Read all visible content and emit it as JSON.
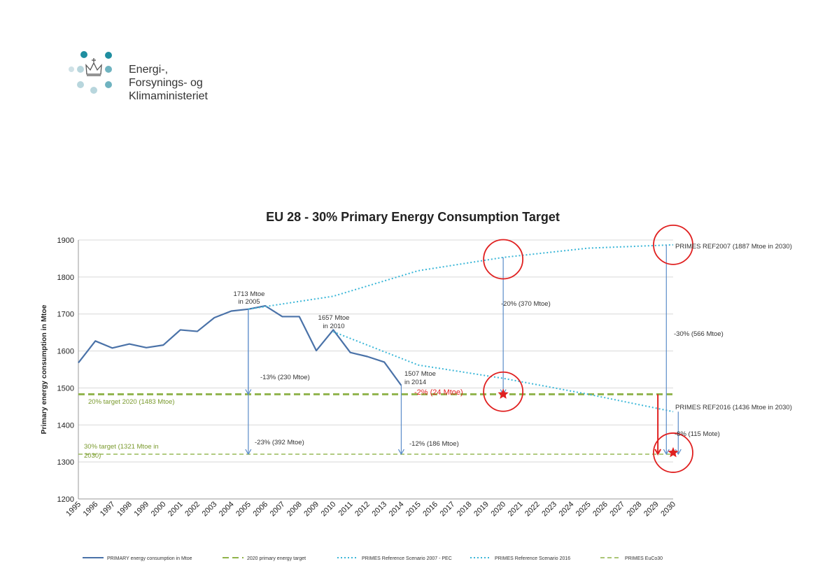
{
  "logo": {
    "line1": "Energi-,",
    "line2": "Forsynings- og",
    "line3": "Klimaministeriet",
    "icon": "crown-dots-icon",
    "dot_colors": [
      "#1f8ea0",
      "#6fb3c0",
      "#b8d6dd"
    ]
  },
  "colors": {
    "primary": "#4a72a8",
    "target_green": "#8fb34a",
    "primes": "#3cb7d8",
    "arrow": "#5b8cc9",
    "red": "#e02020",
    "grid": "#d8d8d8"
  },
  "chart_data": {
    "type": "line",
    "title": "EU 28 - 30% Primary Energy Consumption Target",
    "ylabel": "Primary energy consumption in Mtoe",
    "xlabel": "",
    "ylim": [
      1200,
      1900
    ],
    "yticks": [
      1200,
      1300,
      1400,
      1500,
      1600,
      1700,
      1800,
      1900
    ],
    "xlim": [
      1995,
      2030
    ],
    "xticks": [
      "1995",
      "1996",
      "1997",
      "1998",
      "1999",
      "2000",
      "2001",
      "2002",
      "2003",
      "2004",
      "2005",
      "2006",
      "2007",
      "2008",
      "2009",
      "2010",
      "2011",
      "2012",
      "2013",
      "2014",
      "2015",
      "2016",
      "2017",
      "2018",
      "2019",
      "2020",
      "2021",
      "2022",
      "2023",
      "2024",
      "2025",
      "2026",
      "2027",
      "2028",
      "2029",
      "2030"
    ],
    "grid": "horizontal",
    "legend_position": "bottom",
    "series": [
      {
        "name": "PRIMARY energy consumption in Mtoe",
        "style": "solid",
        "x": [
          1995,
          1996,
          1997,
          1998,
          1999,
          2000,
          2001,
          2002,
          2003,
          2004,
          2005,
          2006,
          2007,
          2008,
          2009,
          2010,
          2011,
          2012,
          2013,
          2014
        ],
        "y": [
          1568,
          1627,
          1608,
          1619,
          1609,
          1616,
          1657,
          1653,
          1690,
          1708,
          1713,
          1722,
          1693,
          1693,
          1601,
          1657,
          1596,
          1585,
          1570,
          1507
        ]
      },
      {
        "name": "2020 primary energy target",
        "style": "dashed",
        "x": [
          1995,
          2030
        ],
        "y": [
          1483,
          1483
        ]
      },
      {
        "name": "PRIMES Reference Scenario 2007 - PEC",
        "style": "dotted",
        "x": [
          2005,
          2010,
          2015,
          2020,
          2025,
          2030
        ],
        "y": [
          1713,
          1748,
          1817,
          1853,
          1878,
          1887
        ]
      },
      {
        "name": "PRIMES Reference Scenario 2016",
        "style": "dotted",
        "x": [
          2010,
          2015,
          2020,
          2025,
          2030
        ],
        "y": [
          1652,
          1562,
          1526,
          1483,
          1436
        ]
      },
      {
        "name": "PRIMES EuCo30",
        "style": "dashed",
        "x": [
          1995,
          2030
        ],
        "y": [
          1321,
          1321
        ]
      }
    ],
    "annotations": {
      "a2005": "1713 Mtoe",
      "a2005b": "in 2005",
      "a2010": "1657 Mtoe",
      "a2010b": "in 2010",
      "a2014": "1507 Mtoe",
      "a2014b": "in 2014",
      "t2020": "20% target  2020 (1483 Mtoe)",
      "t2030a": "30% target  (1321 Mtoe in",
      "t2030b": "2030)",
      "p13": "-13% (230 Mtoe)",
      "p23": "-23% (392 Mtoe)",
      "p12": "-12% (186 Mtoe)",
      "p20": "-20% (370 Mtoe)",
      "p30": "-30% (566 Mtoe)",
      "p8": "-8% (115 Mote)",
      "p2red": "-2% (24 Mtoe)",
      "ref2007": "PRIMES REF2007 (1887 Mtoe in 2030)",
      "ref2016": "PRIMES REF2016 (1436 Mtoe in 2030)"
    }
  }
}
